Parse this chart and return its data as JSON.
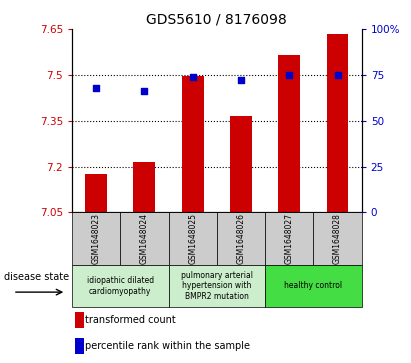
{
  "title": "GDS5610 / 8176098",
  "samples": [
    "GSM1648023",
    "GSM1648024",
    "GSM1648025",
    "GSM1648026",
    "GSM1648027",
    "GSM1648028"
  ],
  "bar_values": [
    7.175,
    7.215,
    7.495,
    7.365,
    7.565,
    7.635
  ],
  "percentile_values": [
    68,
    66,
    74,
    72,
    75,
    75
  ],
  "bar_bottom": 7.05,
  "ylim_left": [
    7.05,
    7.65
  ],
  "ylim_right": [
    0,
    100
  ],
  "yticks_left": [
    7.05,
    7.2,
    7.35,
    7.5,
    7.65
  ],
  "yticks_right": [
    0,
    25,
    50,
    75,
    100
  ],
  "ytick_labels_left": [
    "7.05",
    "7.2",
    "7.35",
    "7.5",
    "7.65"
  ],
  "ytick_labels_right": [
    "0",
    "25",
    "50",
    "75",
    "100%"
  ],
  "bar_color": "#cc0000",
  "dot_color": "#0000cc",
  "left_tick_color": "#cc0000",
  "right_tick_color": "#0000cc",
  "disease_groups": [
    {
      "label": "idiopathic dilated\ncardiomyopathy",
      "start": 0,
      "end": 2,
      "color": "#cceecc"
    },
    {
      "label": "pulmonary arterial\nhypertension with\nBMPR2 mutation",
      "start": 2,
      "end": 4,
      "color": "#cceecc"
    },
    {
      "label": "healthy control",
      "start": 4,
      "end": 6,
      "color": "#44dd44"
    }
  ],
  "legend_bar_label": "transformed count",
  "legend_dot_label": "percentile rank within the sample",
  "disease_state_label": "disease state",
  "tick_bg_color": "#cccccc",
  "gridline_ticks": [
    7.2,
    7.35,
    7.5
  ]
}
